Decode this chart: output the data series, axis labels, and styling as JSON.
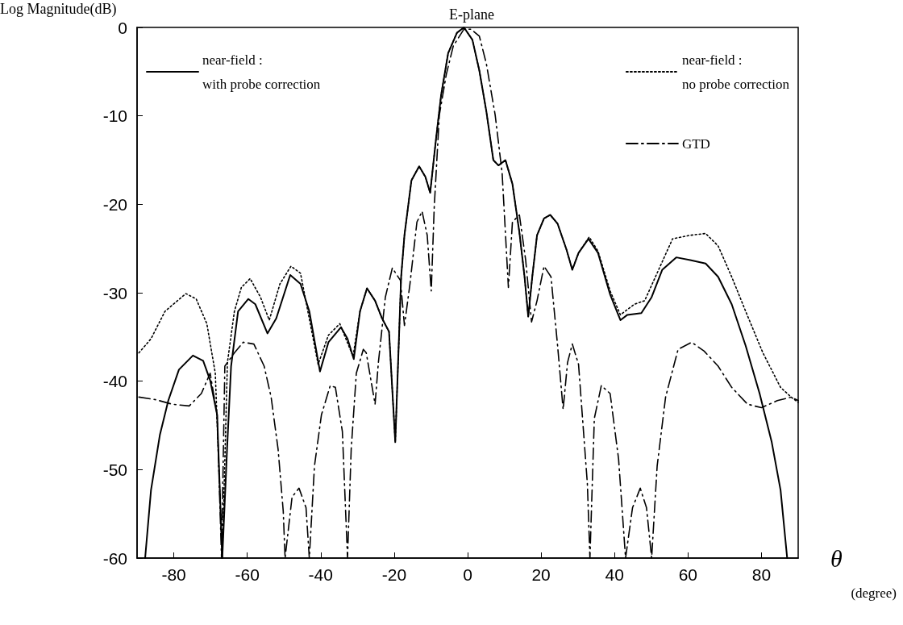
{
  "chart_data": {
    "type": "line",
    "title": "E-plane",
    "ylabel": "Log Magnitude(dB)",
    "xlabel": "θ",
    "annotations": [
      "(degree)"
    ],
    "xlim": [
      -90,
      90
    ],
    "xticks": [
      -80,
      -60,
      -40,
      -20,
      0,
      20,
      40,
      60,
      80
    ],
    "ylim": [
      -60,
      0
    ],
    "yticks": [
      0,
      -10,
      -20,
      -30,
      -40,
      -50,
      -60
    ],
    "grid": false,
    "legend": "top",
    "marker": "none",
    "series": [
      {
        "name": "near-field :\nwith probe correction",
        "color": "#000000",
        "line_style": "solid",
        "x": [
          -87.8,
          -86.2,
          -83.8,
          -81.5,
          -78.6,
          -74.8,
          -72,
          -70.1,
          -68.2,
          -66.8,
          -65.5,
          -64.4,
          -62.5,
          -59.7,
          -57.8,
          -54.5,
          -52.1,
          -48.3,
          -45.5,
          -43.1,
          -40.2,
          -37.9,
          -34.5,
          -32.7,
          -31,
          -29.3,
          -27.4,
          -25.2,
          -23.3,
          -21.4,
          -19.7,
          -18.1,
          -17.2,
          -15.3,
          -13.2,
          -11.5,
          -10.2,
          -8.6,
          -7.2,
          -5.3,
          -2.9,
          -1,
          1.3,
          3.2,
          5.1,
          7,
          8.4,
          10.3,
          12.2,
          14.1,
          15.5,
          16.5,
          17.6,
          18.9,
          20.8,
          22.5,
          24.5,
          26.9,
          28.5,
          30.2,
          32.9,
          35.5,
          38.8,
          41.6,
          43.5,
          47.3,
          50.1,
          53,
          56.8,
          60.6,
          64.8,
          68.2,
          71.9,
          75.7,
          79.5,
          82.8,
          85.2,
          87
        ],
        "values": [
          -60,
          -52.3,
          -46.1,
          -42.2,
          -38.7,
          -37.1,
          -37.7,
          -39.9,
          -43.8,
          -60,
          -47.7,
          -38.3,
          -32.1,
          -30.7,
          -31.3,
          -34.6,
          -32.9,
          -28,
          -29,
          -32.1,
          -38.9,
          -35.6,
          -33.9,
          -35.2,
          -37.5,
          -32.1,
          -29.5,
          -30.9,
          -32.9,
          -34.4,
          -46.9,
          -28.2,
          -23.5,
          -17.3,
          -15.7,
          -16.9,
          -18.7,
          -12.6,
          -7.6,
          -2.9,
          -0.6,
          0,
          -1.4,
          -4.9,
          -9.5,
          -15,
          -15.6,
          -15,
          -17.7,
          -23.2,
          -28.2,
          -32.7,
          -28.2,
          -23.5,
          -21.6,
          -21.2,
          -22.2,
          -25.1,
          -27.4,
          -25.5,
          -23.9,
          -25.5,
          -30.2,
          -33.1,
          -32.5,
          -32.3,
          -30.5,
          -27.4,
          -26,
          -26.3,
          -26.7,
          -28.2,
          -31.3,
          -36,
          -41.4,
          -46.9,
          -52.3,
          -60
        ]
      },
      {
        "name": "near-field :\nno probe correction",
        "color": "#000000",
        "line_style": "dotted",
        "x": [
          -89.5,
          -86.2,
          -82.4,
          -76.7,
          -73.9,
          -71,
          -68.7,
          -66.8,
          -65.4,
          -63.5,
          -61.6,
          -59.2,
          -56.4,
          -54,
          -51.1,
          -48.1,
          -45.5,
          -40.7,
          -37.9,
          -34.8,
          -31.2,
          -29.3,
          -27.4,
          -25.2,
          -23.3,
          -21.4,
          -19.7,
          -18.1,
          -17.2,
          -15.3,
          -13.2,
          -11.5,
          -10.2,
          -8.6,
          -7.2,
          -5.3,
          -2.9,
          -1,
          1.3,
          3.2,
          5.1,
          7,
          8.4,
          10.3,
          12.2,
          14.1,
          15.5,
          16.5,
          17.6,
          18.9,
          20.8,
          22.5,
          24.5,
          26.9,
          28.5,
          30.2,
          33.1,
          35.5,
          38.8,
          41.6,
          45.4,
          48.2,
          52,
          55.8,
          60.6,
          64.8,
          68.2,
          71.9,
          75.7,
          80.4,
          85.2,
          88.1,
          90
        ],
        "values": [
          -36.8,
          -35.2,
          -32.1,
          -30.1,
          -30.7,
          -33.5,
          -39.1,
          -60,
          -37.9,
          -32.1,
          -29.4,
          -28.4,
          -30.5,
          -33.1,
          -29,
          -27,
          -27.8,
          -38.1,
          -34.8,
          -33.5,
          -37.2,
          -32.1,
          -29.5,
          -30.9,
          -32.9,
          -34.4,
          -46.9,
          -28.2,
          -23.5,
          -17.3,
          -15.7,
          -16.9,
          -18.7,
          -12.6,
          -7.6,
          -2.9,
          -0.6,
          0,
          -1.4,
          -4.9,
          -9.5,
          -15,
          -15.6,
          -15,
          -17.7,
          -23.2,
          -28.2,
          -32.7,
          -28.2,
          -23.5,
          -21.6,
          -21.2,
          -22.2,
          -25.1,
          -27.4,
          -25.5,
          -23.7,
          -25.3,
          -29.8,
          -32.5,
          -31.3,
          -30.9,
          -27.4,
          -23.9,
          -23.5,
          -23.3,
          -24.7,
          -28.2,
          -32.1,
          -36.8,
          -40.7,
          -41.8,
          -42.4
        ]
      },
      {
        "name": "GTD",
        "color": "#000000",
        "line_style": "dashed",
        "x": [
          -89.5,
          -84.8,
          -80.5,
          -75.8,
          -72.5,
          -70.1,
          -68.2,
          -67,
          -66.1,
          -63.5,
          -61.1,
          -58.2,
          -55.4,
          -53.5,
          -51.6,
          -50.2,
          -49.7,
          -47.8,
          -45.9,
          -44,
          -43.1,
          -41.7,
          -39.8,
          -37.4,
          -36,
          -34.1,
          -32.7,
          -31.7,
          -30.3,
          -28.4,
          -27.6,
          -25.2,
          -24.3,
          -22.4,
          -20.5,
          -18.3,
          -17.2,
          -15.7,
          -13.8,
          -12.4,
          -11,
          -9.9,
          -9.1,
          -7.7,
          -5.8,
          -3.9,
          -1,
          0.9,
          3.2,
          5.1,
          7.5,
          9.4,
          11.1,
          12.2,
          14.1,
          15.8,
          17.4,
          18.9,
          20.8,
          22.7,
          24.5,
          26,
          27.2,
          28.5,
          30.2,
          32.6,
          33.3,
          34.5,
          36.4,
          38.8,
          41.1,
          43,
          44.9,
          47,
          48.7,
          50.1,
          51.6,
          53.9,
          57.3,
          61,
          64.4,
          68.2,
          71.9,
          76.2,
          80,
          84.3,
          88.1,
          90
        ],
        "values": [
          -41.8,
          -42.1,
          -42.6,
          -42.8,
          -41.4,
          -39.1,
          -43.8,
          -60,
          -38.3,
          -36.8,
          -35.6,
          -35.8,
          -38.3,
          -41.8,
          -47.7,
          -54.7,
          -60,
          -53.1,
          -52.1,
          -54.3,
          -60,
          -49.6,
          -43.8,
          -40.5,
          -40.7,
          -45.7,
          -60,
          -47.7,
          -39.1,
          -36.4,
          -36.8,
          -42.6,
          -37.9,
          -30.5,
          -27.2,
          -28.6,
          -33.7,
          -29,
          -22,
          -20.8,
          -23.5,
          -29.8,
          -20.4,
          -9.9,
          -5.3,
          -2.1,
          -0.2,
          -0.2,
          -1,
          -4.1,
          -9.9,
          -16.5,
          -29.4,
          -22,
          -21.2,
          -26.3,
          -33.3,
          -30.9,
          -27,
          -28.2,
          -36,
          -43.2,
          -37.9,
          -35.8,
          -38.1,
          -51.6,
          -60,
          -44.2,
          -40.5,
          -41.4,
          -48.8,
          -60,
          -54.3,
          -52.1,
          -54.3,
          -60,
          -49.6,
          -41.8,
          -36.4,
          -35.6,
          -36.6,
          -38.3,
          -40.7,
          -42.6,
          -43,
          -42.2,
          -41.8,
          -42.2
        ]
      }
    ]
  }
}
